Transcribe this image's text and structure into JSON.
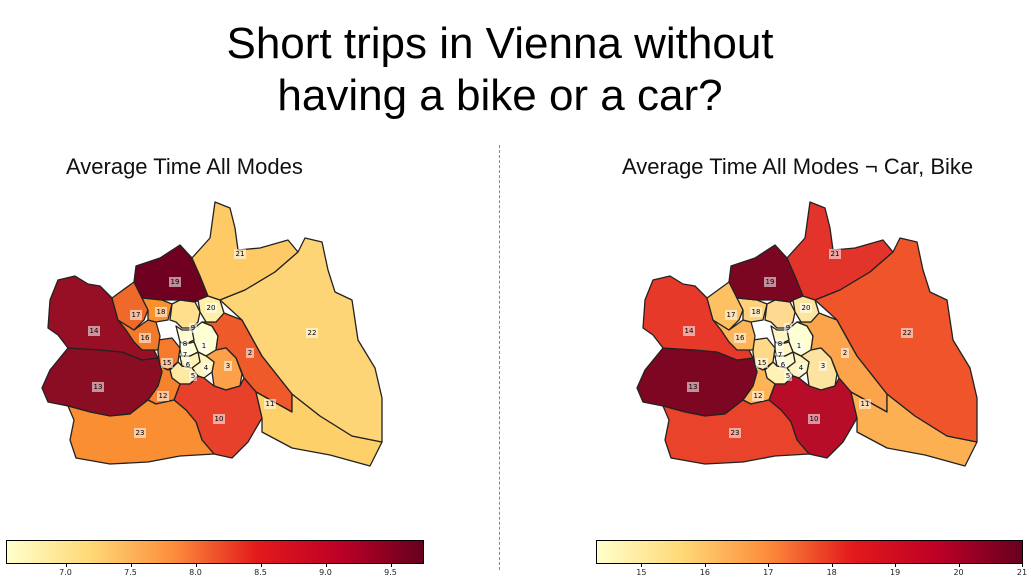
{
  "title_line1": "Short trips in Vienna without",
  "title_line2": "having a bike or a car?",
  "maps": [
    {
      "title": "Average Time All Modes",
      "colorbar_ticks": [
        "7.0",
        "7.5",
        "8.0",
        "8.5",
        "9.0",
        "9.5"
      ],
      "colorbar_range": [
        6.55,
        9.75
      ],
      "colorbar_colors": [
        "#ffffcc",
        "#fed976",
        "#fd8d3c",
        "#e31a1c",
        "#bd0026",
        "#67001f"
      ],
      "district_colors": {
        "1": "#ffffd4",
        "2": "#ef5a2a",
        "3": "#fca14a",
        "4": "#fff6bf",
        "5": "#fde9a2",
        "6": "#fff2b0",
        "7": "#ffffd4",
        "8": "#fffbd0",
        "9": "#fedf8c",
        "10": "#e8412b",
        "11": "#fed06a",
        "12": "#f6822f",
        "13": "#8b0d24",
        "14": "#960f25",
        "15": "#f57a2c",
        "16": "#f27a2b",
        "17": "#ef6a2a",
        "18": "#f8922f",
        "19": "#6f0020",
        "20": "#fef0a8",
        "21": "#feca66",
        "22": "#fed576",
        "23": "#f98e32"
      }
    },
    {
      "title": "Average Time All Modes ¬ Car, Bike",
      "colorbar_ticks": [
        "15",
        "16",
        "17",
        "18",
        "19",
        "20",
        "21"
      ],
      "colorbar_range": [
        14.3,
        21.0
      ],
      "colorbar_colors": [
        "#ffffcc",
        "#fed976",
        "#fd8d3c",
        "#e31a1c",
        "#bd0026",
        "#67001f"
      ],
      "district_colors": {
        "1": "#ffffd4",
        "2": "#fca44c",
        "3": "#fde3a0",
        "4": "#fff4bd",
        "5": "#fff2b4",
        "6": "#fffbd0",
        "7": "#fff6c4",
        "8": "#fff6c4",
        "9": "#fed990",
        "10": "#b80d28",
        "11": "#fdb052",
        "12": "#fdb356",
        "13": "#7d0623",
        "14": "#e6392a",
        "15": "#fed98a",
        "16": "#fcb55a",
        "17": "#fdc062",
        "18": "#fed27a",
        "19": "#7b0622",
        "20": "#fde4a0",
        "21": "#e2342a",
        "22": "#ef542a",
        "23": "#e9442b"
      }
    }
  ]
}
